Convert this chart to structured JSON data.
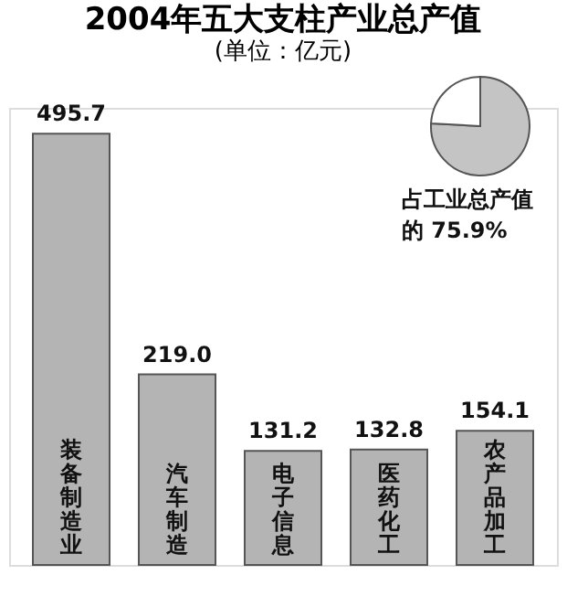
{
  "chart_data": [
    {
      "type": "bar",
      "title": "2004年五大支柱产业总产值",
      "subtitle": "(单位：亿元)",
      "categories": [
        "装备制造业",
        "汽车制造",
        "电子信息",
        "医药化工",
        "农产品加工"
      ],
      "values": [
        495.7,
        219.0,
        131.2,
        132.8,
        154.1
      ],
      "value_labels": [
        "495.7",
        "219.0",
        "131.2",
        "132.8",
        "154.1"
      ],
      "color": "#b4b4b4"
    },
    {
      "type": "pie",
      "categories": [
        null,
        null
      ],
      "values": [
        75.9,
        24.1
      ],
      "colors": [
        "#c4c4c4",
        "#ffffff"
      ],
      "annotations": [
        "占工业总产值的 75.9%"
      ]
    }
  ]
}
